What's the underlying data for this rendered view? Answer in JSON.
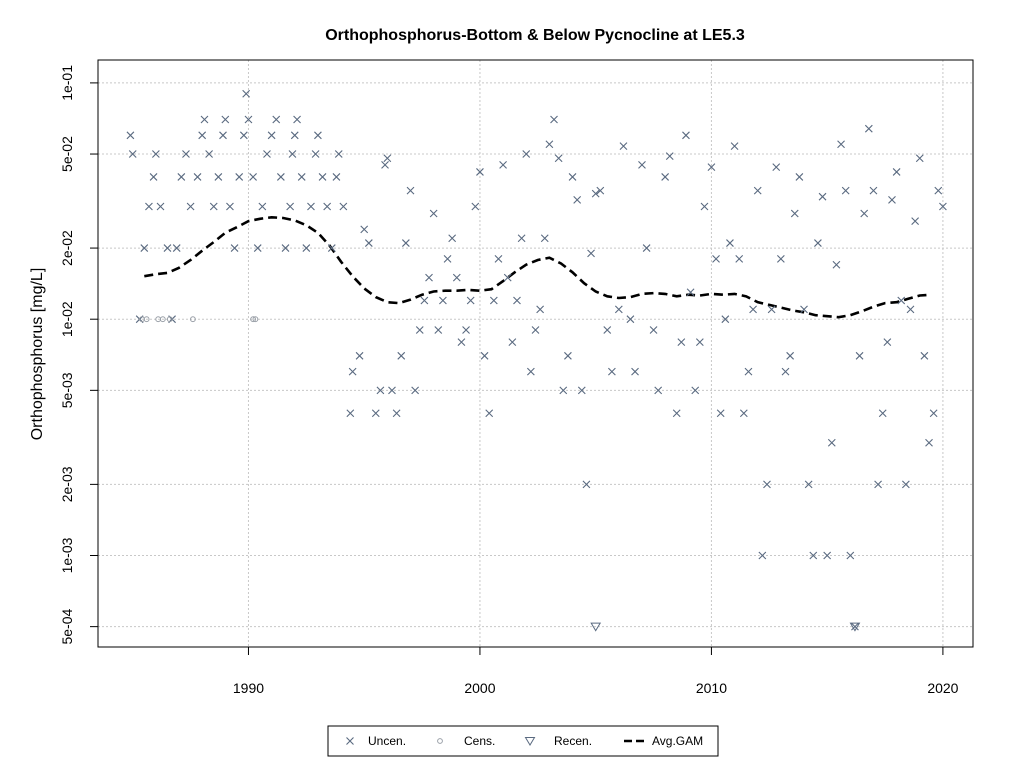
{
  "chart_data": {
    "type": "scatter",
    "title": "Orthophosphorus-Bottom & Below Pycnocline at LE5.3",
    "xlabel": "",
    "ylabel": "Orthophosphorus [mg/L]",
    "y_scale": "log",
    "xlim": [
      1983.5,
      2021.3
    ],
    "ylim": [
      0.00041,
      0.125
    ],
    "grid": true,
    "x_ticks": [
      {
        "value": 1990,
        "label": "1990"
      },
      {
        "value": 2000,
        "label": "2000"
      },
      {
        "value": 2010,
        "label": "2010"
      },
      {
        "value": 2020,
        "label": "2020"
      }
    ],
    "y_ticks": [
      {
        "value": 0.1,
        "label": "1e-01"
      },
      {
        "value": 0.05,
        "label": "5e-02"
      },
      {
        "value": 0.02,
        "label": "2e-02"
      },
      {
        "value": 0.01,
        "label": "1e-02"
      },
      {
        "value": 0.005,
        "label": "5e-03"
      },
      {
        "value": 0.002,
        "label": "2e-03"
      },
      {
        "value": 0.001,
        "label": "1e-03"
      },
      {
        "value": 0.0005,
        "label": "5e-04"
      }
    ],
    "legend": {
      "position": "bottom",
      "entries": [
        {
          "label": "Uncen.",
          "marker": "cross"
        },
        {
          "label": "Cens.",
          "marker": "circle"
        },
        {
          "label": "Recen.",
          "marker": "triangle-down"
        },
        {
          "label": "Avg.GAM",
          "marker": "dashed-line"
        }
      ]
    },
    "colors": {
      "points": "#5a6a80",
      "censored": "#9aa0a8",
      "gam": "#000000",
      "grid": "#c8c8c8"
    },
    "series": [
      {
        "name": "Uncen.",
        "marker": "cross",
        "points": [
          [
            1984.9,
            0.06
          ],
          [
            1985.0,
            0.05
          ],
          [
            1985.3,
            0.01
          ],
          [
            1985.5,
            0.02
          ],
          [
            1985.7,
            0.03
          ],
          [
            1985.9,
            0.04
          ],
          [
            1986.0,
            0.05
          ],
          [
            1986.2,
            0.03
          ],
          [
            1986.5,
            0.02
          ],
          [
            1986.7,
            0.01
          ],
          [
            1986.9,
            0.02
          ],
          [
            1987.1,
            0.04
          ],
          [
            1987.3,
            0.05
          ],
          [
            1987.5,
            0.03
          ],
          [
            1987.8,
            0.04
          ],
          [
            1988.0,
            0.06
          ],
          [
            1988.1,
            0.07
          ],
          [
            1988.3,
            0.05
          ],
          [
            1988.5,
            0.03
          ],
          [
            1988.7,
            0.04
          ],
          [
            1988.9,
            0.06
          ],
          [
            1989.0,
            0.07
          ],
          [
            1989.2,
            0.03
          ],
          [
            1989.4,
            0.02
          ],
          [
            1989.6,
            0.04
          ],
          [
            1989.8,
            0.06
          ],
          [
            1989.9,
            0.09
          ],
          [
            1990.0,
            0.07
          ],
          [
            1990.2,
            0.04
          ],
          [
            1990.4,
            0.02
          ],
          [
            1990.6,
            0.03
          ],
          [
            1990.8,
            0.05
          ],
          [
            1991.0,
            0.06
          ],
          [
            1991.2,
            0.07
          ],
          [
            1991.4,
            0.04
          ],
          [
            1991.6,
            0.02
          ],
          [
            1991.8,
            0.03
          ],
          [
            1991.9,
            0.05
          ],
          [
            1992.0,
            0.06
          ],
          [
            1992.1,
            0.07
          ],
          [
            1992.3,
            0.04
          ],
          [
            1992.5,
            0.02
          ],
          [
            1992.7,
            0.03
          ],
          [
            1992.9,
            0.05
          ],
          [
            1993.0,
            0.06
          ],
          [
            1993.2,
            0.04
          ],
          [
            1993.4,
            0.03
          ],
          [
            1993.6,
            0.02
          ],
          [
            1993.8,
            0.04
          ],
          [
            1993.9,
            0.05
          ],
          [
            1994.1,
            0.03
          ],
          [
            1994.4,
            0.004
          ],
          [
            1994.5,
            0.006
          ],
          [
            1994.8,
            0.007
          ],
          [
            1995.0,
            0.024
          ],
          [
            1995.2,
            0.021
          ],
          [
            1995.5,
            0.004
          ],
          [
            1995.7,
            0.005
          ],
          [
            1995.9,
            0.045
          ],
          [
            1996.0,
            0.048
          ],
          [
            1996.2,
            0.005
          ],
          [
            1996.4,
            0.004
          ],
          [
            1996.6,
            0.007
          ],
          [
            1996.8,
            0.021
          ],
          [
            1997.0,
            0.035
          ],
          [
            1997.2,
            0.005
          ],
          [
            1997.4,
            0.009
          ],
          [
            1997.6,
            0.012
          ],
          [
            1997.8,
            0.015
          ],
          [
            1998.0,
            0.028
          ],
          [
            1998.2,
            0.009
          ],
          [
            1998.4,
            0.012
          ],
          [
            1998.6,
            0.018
          ],
          [
            1998.8,
            0.022
          ],
          [
            1999.0,
            0.015
          ],
          [
            1999.2,
            0.008
          ],
          [
            1999.4,
            0.009
          ],
          [
            1999.6,
            0.012
          ],
          [
            1999.8,
            0.03
          ],
          [
            2000.0,
            0.042
          ],
          [
            2000.2,
            0.007
          ],
          [
            2000.4,
            0.004
          ],
          [
            2000.6,
            0.012
          ],
          [
            2000.8,
            0.018
          ],
          [
            2001.0,
            0.045
          ],
          [
            2001.2,
            0.015
          ],
          [
            2001.4,
            0.008
          ],
          [
            2001.6,
            0.012
          ],
          [
            2001.8,
            0.022
          ],
          [
            2002.0,
            0.05
          ],
          [
            2002.2,
            0.006
          ],
          [
            2002.4,
            0.009
          ],
          [
            2002.6,
            0.011
          ],
          [
            2002.8,
            0.022
          ],
          [
            2003.0,
            0.055
          ],
          [
            2003.2,
            0.07
          ],
          [
            2003.4,
            0.048
          ],
          [
            2003.6,
            0.005
          ],
          [
            2003.8,
            0.007
          ],
          [
            2004.0,
            0.04
          ],
          [
            2004.2,
            0.032
          ],
          [
            2004.4,
            0.005
          ],
          [
            2004.6,
            0.002
          ],
          [
            2004.8,
            0.019
          ],
          [
            2005.0,
            0.034
          ],
          [
            2005.2,
            0.035
          ],
          [
            2005.5,
            0.009
          ],
          [
            2005.7,
            0.006
          ],
          [
            2006.0,
            0.011
          ],
          [
            2006.2,
            0.054
          ],
          [
            2006.5,
            0.01
          ],
          [
            2006.7,
            0.006
          ],
          [
            2007.0,
            0.045
          ],
          [
            2007.2,
            0.02
          ],
          [
            2007.5,
            0.009
          ],
          [
            2007.7,
            0.005
          ],
          [
            2008.0,
            0.04
          ],
          [
            2008.2,
            0.049
          ],
          [
            2008.5,
            0.004
          ],
          [
            2008.7,
            0.008
          ],
          [
            2008.9,
            0.06
          ],
          [
            2009.1,
            0.013
          ],
          [
            2009.3,
            0.005
          ],
          [
            2009.5,
            0.008
          ],
          [
            2009.7,
            0.03
          ],
          [
            2010.0,
            0.044
          ],
          [
            2010.2,
            0.018
          ],
          [
            2010.4,
            0.004
          ],
          [
            2010.6,
            0.01
          ],
          [
            2010.8,
            0.021
          ],
          [
            2011.0,
            0.054
          ],
          [
            2011.2,
            0.018
          ],
          [
            2011.4,
            0.004
          ],
          [
            2011.6,
            0.006
          ],
          [
            2011.8,
            0.011
          ],
          [
            2012.0,
            0.035
          ],
          [
            2012.2,
            0.001
          ],
          [
            2012.4,
            0.002
          ],
          [
            2012.6,
            0.011
          ],
          [
            2012.8,
            0.044
          ],
          [
            2013.0,
            0.018
          ],
          [
            2013.2,
            0.006
          ],
          [
            2013.4,
            0.007
          ],
          [
            2013.6,
            0.028
          ],
          [
            2013.8,
            0.04
          ],
          [
            2014.0,
            0.011
          ],
          [
            2014.2,
            0.002
          ],
          [
            2014.4,
            0.001
          ],
          [
            2014.6,
            0.021
          ],
          [
            2014.8,
            0.033
          ],
          [
            2015.0,
            0.001
          ],
          [
            2015.2,
            0.003
          ],
          [
            2015.4,
            0.017
          ],
          [
            2015.6,
            0.055
          ],
          [
            2015.8,
            0.035
          ],
          [
            2016.0,
            0.001
          ],
          [
            2016.2,
            0.0005
          ],
          [
            2016.4,
            0.007
          ],
          [
            2016.6,
            0.028
          ],
          [
            2016.8,
            0.064
          ],
          [
            2017.0,
            0.035
          ],
          [
            2017.2,
            0.002
          ],
          [
            2017.4,
            0.004
          ],
          [
            2017.6,
            0.008
          ],
          [
            2017.8,
            0.032
          ],
          [
            2018.0,
            0.042
          ],
          [
            2018.2,
            0.012
          ],
          [
            2018.4,
            0.002
          ],
          [
            2018.6,
            0.011
          ],
          [
            2018.8,
            0.026
          ],
          [
            2019.0,
            0.048
          ],
          [
            2019.2,
            0.007
          ],
          [
            2019.4,
            0.003
          ],
          [
            2019.6,
            0.004
          ],
          [
            2019.8,
            0.035
          ],
          [
            2020.0,
            0.03
          ]
        ]
      },
      {
        "name": "Cens.",
        "marker": "circle",
        "points": [
          [
            1985.4,
            0.01
          ],
          [
            1985.6,
            0.01
          ],
          [
            1986.1,
            0.01
          ],
          [
            1986.3,
            0.01
          ],
          [
            1986.6,
            0.01
          ],
          [
            1987.6,
            0.01
          ],
          [
            1990.2,
            0.01
          ],
          [
            1990.3,
            0.01
          ]
        ]
      },
      {
        "name": "Recen.",
        "marker": "triangle-down",
        "points": [
          [
            2005.0,
            0.0005
          ],
          [
            2016.2,
            0.0005
          ]
        ]
      },
      {
        "name": "Avg.GAM",
        "marker": "dashed-line",
        "points": [
          [
            1985.5,
            0.0152
          ],
          [
            1986.0,
            0.0155
          ],
          [
            1986.5,
            0.0157
          ],
          [
            1987.0,
            0.0165
          ],
          [
            1987.5,
            0.0178
          ],
          [
            1988.0,
            0.0195
          ],
          [
            1988.5,
            0.0212
          ],
          [
            1989.0,
            0.0232
          ],
          [
            1989.5,
            0.0245
          ],
          [
            1990.0,
            0.026
          ],
          [
            1990.5,
            0.0266
          ],
          [
            1991.0,
            0.027
          ],
          [
            1991.5,
            0.0268
          ],
          [
            1992.0,
            0.0262
          ],
          [
            1992.5,
            0.025
          ],
          [
            1993.0,
            0.0232
          ],
          [
            1993.5,
            0.0205
          ],
          [
            1994.0,
            0.0175
          ],
          [
            1994.5,
            0.0152
          ],
          [
            1995.0,
            0.0135
          ],
          [
            1995.5,
            0.0124
          ],
          [
            1996.0,
            0.0118
          ],
          [
            1996.5,
            0.0117
          ],
          [
            1997.0,
            0.0121
          ],
          [
            1997.5,
            0.0127
          ],
          [
            1998.0,
            0.0131
          ],
          [
            1998.5,
            0.0132
          ],
          [
            1999.0,
            0.0132
          ],
          [
            1999.5,
            0.0133
          ],
          [
            2000.0,
            0.0132
          ],
          [
            2000.5,
            0.0134
          ],
          [
            2001.0,
            0.0145
          ],
          [
            2001.5,
            0.0158
          ],
          [
            2002.0,
            0.017
          ],
          [
            2002.5,
            0.0178
          ],
          [
            2003.0,
            0.0182
          ],
          [
            2003.5,
            0.0172
          ],
          [
            2004.0,
            0.0158
          ],
          [
            2004.5,
            0.0142
          ],
          [
            2005.0,
            0.0131
          ],
          [
            2005.5,
            0.0125
          ],
          [
            2006.0,
            0.0123
          ],
          [
            2006.5,
            0.0124
          ],
          [
            2007.0,
            0.0128
          ],
          [
            2007.5,
            0.0129
          ],
          [
            2008.0,
            0.0128
          ],
          [
            2008.5,
            0.0125
          ],
          [
            2009.0,
            0.0127
          ],
          [
            2009.5,
            0.0126
          ],
          [
            2010.0,
            0.0128
          ],
          [
            2010.5,
            0.0127
          ],
          [
            2011.0,
            0.0128
          ],
          [
            2011.5,
            0.0125
          ],
          [
            2012.0,
            0.0118
          ],
          [
            2012.5,
            0.0115
          ],
          [
            2013.0,
            0.0112
          ],
          [
            2013.5,
            0.0109
          ],
          [
            2014.0,
            0.0107
          ],
          [
            2014.5,
            0.0104
          ],
          [
            2015.0,
            0.0103
          ],
          [
            2015.5,
            0.0102
          ],
          [
            2016.0,
            0.0104
          ],
          [
            2016.5,
            0.0108
          ],
          [
            2017.0,
            0.0113
          ],
          [
            2017.5,
            0.0117
          ],
          [
            2018.0,
            0.0118
          ],
          [
            2018.5,
            0.0122
          ],
          [
            2019.0,
            0.0126
          ],
          [
            2019.5,
            0.0127
          ]
        ]
      }
    ]
  }
}
